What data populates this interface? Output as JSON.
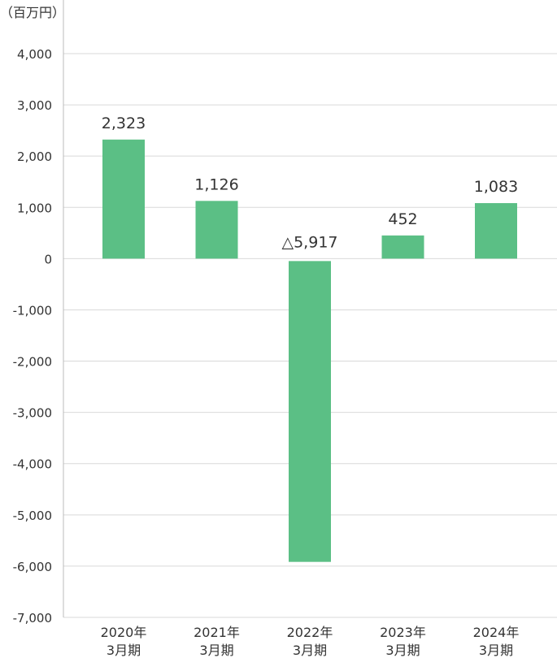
{
  "chart_data": {
    "type": "bar",
    "unit_label": "（百万円）",
    "categories": [
      [
        "2020年",
        "3月期"
      ],
      [
        "2021年",
        "3月期"
      ],
      [
        "2022年",
        "3月期"
      ],
      [
        "2023年",
        "3月期"
      ],
      [
        "2024年",
        "3月期"
      ]
    ],
    "values": [
      2323,
      1126,
      -5917,
      452,
      1083
    ],
    "data_labels": [
      "2,323",
      "1,126",
      "△5,917",
      "452",
      "1,083"
    ],
    "ylim": [
      -7000,
      4000
    ],
    "yticks": [
      4000,
      3000,
      2000,
      1000,
      0,
      -1000,
      -2000,
      -3000,
      -4000,
      -5000,
      -6000,
      -7000
    ],
    "ytick_labels": [
      "4,000",
      "3,000",
      "2,000",
      "1,000",
      "0",
      "-1,000",
      "-2,000",
      "-3,000",
      "-4,000",
      "-5,000",
      "-6,000",
      "-7,000"
    ],
    "grid": true,
    "legend": "none",
    "colors": {
      "bar": "#5bbf85",
      "grid": "#d9d9d9",
      "axis": "#bbbbbb",
      "text": "#333333"
    }
  }
}
